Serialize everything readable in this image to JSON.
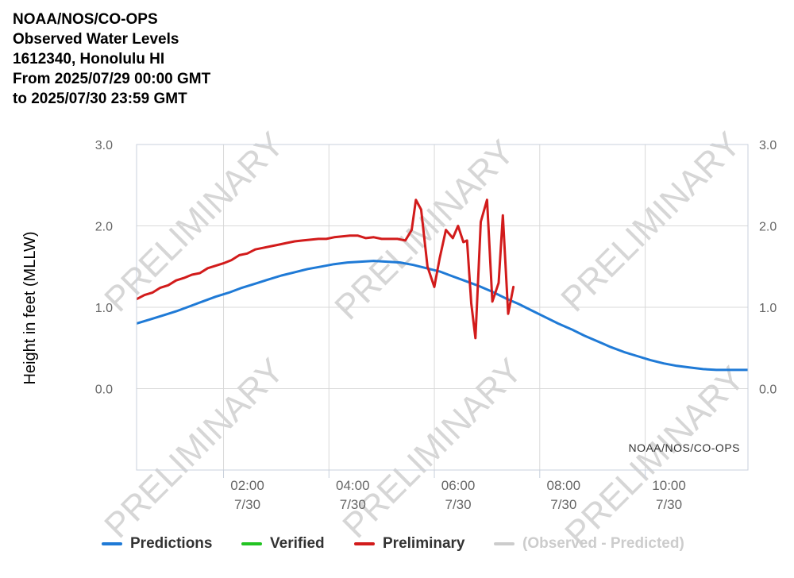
{
  "header": {
    "lines": [
      "NOAA/NOS/CO-OPS",
      "Observed Water Levels",
      "1612340, Honolulu HI",
      "From 2025/07/29 00:00 GMT",
      "to 2025/07/30 23:59 GMT"
    ]
  },
  "watermark": "PRELIMINARY",
  "credit": "NOAA/NOS/CO-OPS",
  "colors": {
    "predictions": "#1f7ad6",
    "verified": "#22c322",
    "preliminary": "#d21b1b",
    "observed_minus_predicted": "#cccccc",
    "grid": "#d9d9d9",
    "axis_text": "#666666"
  },
  "chart_data": {
    "type": "line",
    "ylabel": "Height in feet (MLLW)",
    "ylim": [
      -1.0,
      3.0
    ],
    "xlim_hours": [
      0.35,
      11.95
    ],
    "y_ticks": [
      {
        "value": 3.0,
        "label": "3.0"
      },
      {
        "value": 2.0,
        "label": "2.0"
      },
      {
        "value": 1.0,
        "label": "1.0"
      },
      {
        "value": 0.0,
        "label": "0.0"
      }
    ],
    "x_ticks": [
      {
        "hour": 2,
        "time": "02:00",
        "date": "7/30"
      },
      {
        "hour": 4,
        "time": "04:00",
        "date": "7/30"
      },
      {
        "hour": 6,
        "time": "06:00",
        "date": "7/30"
      },
      {
        "hour": 8,
        "time": "08:00",
        "date": "7/30"
      },
      {
        "hour": 10,
        "time": "10:00",
        "date": "7/30"
      }
    ],
    "grid": true,
    "legend_position": "bottom",
    "series": [
      {
        "name": "Predictions",
        "x": [
          0.35,
          0.6,
          0.85,
          1.1,
          1.35,
          1.6,
          1.85,
          2.1,
          2.35,
          2.6,
          2.85,
          3.1,
          3.35,
          3.6,
          3.85,
          4.1,
          4.35,
          4.6,
          4.85,
          5.1,
          5.35,
          5.6,
          5.85,
          6.1,
          6.35,
          6.6,
          6.85,
          7.1,
          7.35,
          7.6,
          7.85,
          8.1,
          8.35,
          8.6,
          8.85,
          9.1,
          9.35,
          9.6,
          9.85,
          10.1,
          10.35,
          10.6,
          10.85,
          11.1,
          11.35,
          11.6,
          11.85,
          11.95
        ],
        "values": [
          0.8,
          0.85,
          0.9,
          0.95,
          1.01,
          1.07,
          1.13,
          1.18,
          1.24,
          1.29,
          1.34,
          1.39,
          1.43,
          1.47,
          1.5,
          1.53,
          1.55,
          1.56,
          1.57,
          1.56,
          1.55,
          1.52,
          1.48,
          1.44,
          1.38,
          1.32,
          1.26,
          1.19,
          1.11,
          1.04,
          0.96,
          0.88,
          0.8,
          0.73,
          0.65,
          0.58,
          0.51,
          0.45,
          0.4,
          0.35,
          0.31,
          0.28,
          0.26,
          0.24,
          0.23,
          0.23,
          0.23,
          0.23
        ]
      },
      {
        "name": "Verified",
        "x": [],
        "values": []
      },
      {
        "name": "Preliminary",
        "x": [
          0.35,
          0.5,
          0.65,
          0.8,
          0.95,
          1.1,
          1.25,
          1.4,
          1.55,
          1.7,
          1.85,
          2.0,
          2.15,
          2.3,
          2.45,
          2.6,
          2.75,
          2.9,
          3.05,
          3.2,
          3.35,
          3.5,
          3.65,
          3.8,
          3.95,
          4.1,
          4.25,
          4.4,
          4.55,
          4.7,
          4.85,
          5.0,
          5.15,
          5.3,
          5.45,
          5.57,
          5.65,
          5.75,
          5.87,
          6.0,
          6.1,
          6.22,
          6.35,
          6.45,
          6.55,
          6.62,
          6.7,
          6.78,
          6.88,
          7.0,
          7.1,
          7.22,
          7.3,
          7.4,
          7.5
        ],
        "values": [
          1.1,
          1.15,
          1.18,
          1.24,
          1.27,
          1.33,
          1.36,
          1.4,
          1.42,
          1.48,
          1.51,
          1.54,
          1.58,
          1.64,
          1.66,
          1.71,
          1.73,
          1.75,
          1.77,
          1.79,
          1.81,
          1.82,
          1.83,
          1.84,
          1.84,
          1.86,
          1.87,
          1.88,
          1.88,
          1.85,
          1.86,
          1.84,
          1.84,
          1.84,
          1.82,
          1.95,
          2.32,
          2.2,
          1.5,
          1.25,
          1.6,
          1.95,
          1.85,
          2.0,
          1.8,
          1.82,
          1.05,
          0.62,
          2.05,
          2.32,
          1.07,
          1.3,
          2.13,
          0.92,
          1.25
        ]
      },
      {
        "name": "(Observed - Predicted)",
        "x": [],
        "values": []
      }
    ]
  }
}
